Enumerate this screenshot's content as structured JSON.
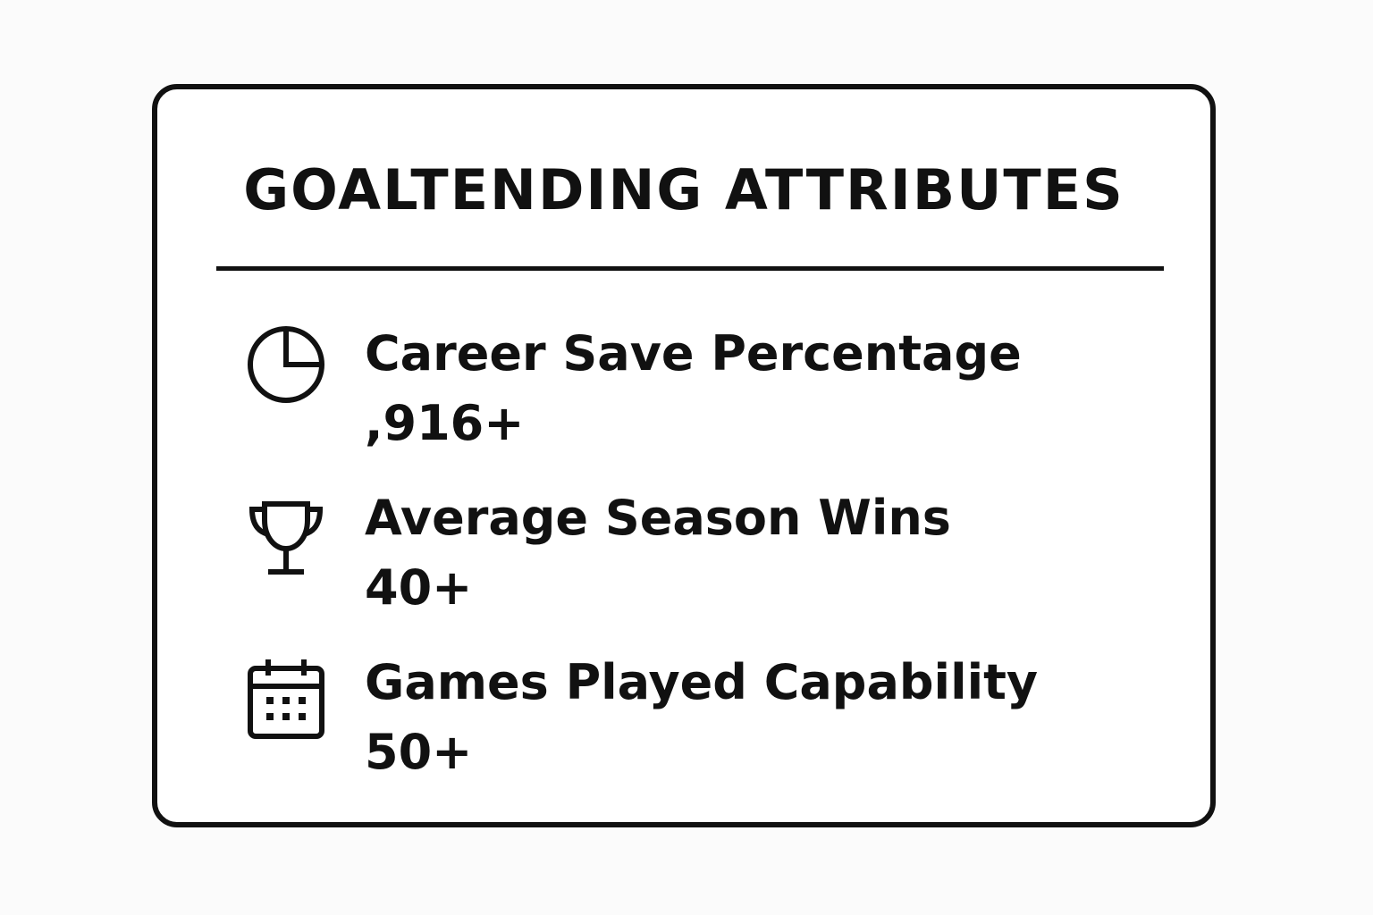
{
  "card": {
    "title": "GOALTENDING ATTRIBUTES",
    "items": [
      {
        "label": "Career Save Percentage",
        "value": ",916+"
      },
      {
        "label": "Average Season Wins",
        "value": "40+"
      },
      {
        "label": "Games Played Capability",
        "value": "50+"
      }
    ]
  }
}
